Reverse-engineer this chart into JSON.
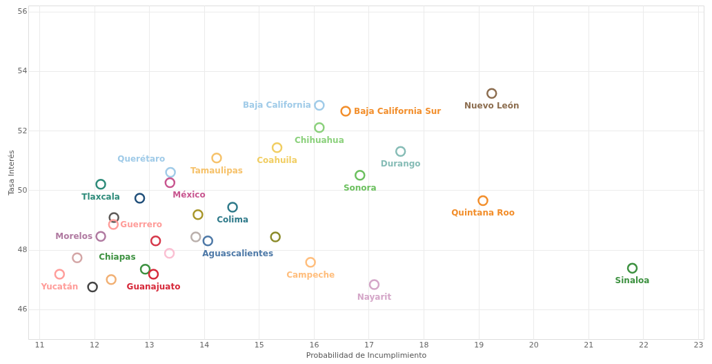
{
  "chart_data": {
    "type": "scatter",
    "xlabel": "Probabilidad de Incumplimiento",
    "ylabel": "Tasa Interés",
    "xlim": [
      10.8,
      23.1
    ],
    "ylim": [
      45,
      56.2
    ],
    "xticks": [
      11,
      12,
      13,
      14,
      15,
      16,
      17,
      18,
      19,
      20,
      21,
      22,
      23
    ],
    "yticks": [
      46,
      48,
      50,
      52,
      54,
      56
    ],
    "grid": true,
    "marker": "circle",
    "x": [
      16.1,
      16.58,
      19.24,
      16.1,
      15.33,
      14.23,
      17.58,
      16.84,
      13.39,
      13.38,
      12.12,
      12.83,
      19.08,
      14.52,
      13.89,
      12.36,
      12.35,
      12.12,
      13.85,
      14.07,
      15.3,
      13.12,
      13.37,
      15.94,
      11.69,
      12.93,
      13.08,
      11.37,
      12.31,
      11.97,
      17.1,
      21.8
    ],
    "values": [
      52.85,
      52.65,
      53.25,
      52.1,
      51.43,
      51.08,
      51.3,
      50.5,
      50.6,
      50.25,
      50.2,
      49.73,
      49.65,
      49.43,
      49.18,
      49.08,
      48.85,
      48.45,
      48.43,
      48.3,
      48.43,
      48.3,
      47.88,
      47.58,
      47.73,
      47.35,
      47.18,
      47.18,
      47.0,
      46.75,
      46.83,
      47.38
    ],
    "colors": [
      "#a0cbe8",
      "#f28e2b",
      "#8c6d4f",
      "#8cd17d",
      "#f1ce63",
      "#f6c26b",
      "#86bcb6",
      "#6cc05f",
      "#a0cbe8",
      "#c8558f",
      "#2e8b7a",
      "#1f4e79",
      "#f28e2b",
      "#2f7a8a",
      "#a8962a",
      "#5e5a58",
      "#ff9d9a",
      "#b07aa1",
      "#bab0ac",
      "#4e79a7",
      "#8b8b2a",
      "#d6384a",
      "#fabfd2",
      "#ffbe7d",
      "#d4a6a6",
      "#3d9140",
      "#d62839",
      "#ff9d9a",
      "#f1b074",
      "#444444",
      "#d4a6c8",
      "#3d9140"
    ],
    "annotations": [
      {
        "text": "Baja California",
        "x": 16.1,
        "y": 52.85
      },
      {
        "text": "Baja California Sur",
        "x": 16.58,
        "y": 52.65
      },
      {
        "text": "Nuevo León",
        "x": 19.24,
        "y": 53.25
      },
      {
        "text": "Chihuahua",
        "x": 16.1,
        "y": 52.1
      },
      {
        "text": "Coahuila",
        "x": 15.33,
        "y": 51.43
      },
      {
        "text": "Tamaulipas",
        "x": 14.23,
        "y": 51.08
      },
      {
        "text": "Durango",
        "x": 17.58,
        "y": 51.3
      },
      {
        "text": "Sonora",
        "x": 16.84,
        "y": 50.5
      },
      {
        "text": "Querétaro",
        "x": 13.39,
        "y": 50.6
      },
      {
        "text": "México",
        "x": 13.38,
        "y": 50.25
      },
      {
        "text": "Tlaxcala",
        "x": 12.12,
        "y": 50.2
      },
      {
        "text": "Quintana Roo",
        "x": 19.08,
        "y": 49.65
      },
      {
        "text": "Colima",
        "x": 14.52,
        "y": 49.43
      },
      {
        "text": "Guerrero",
        "x": 12.35,
        "y": 48.85
      },
      {
        "text": "Morelos",
        "x": 12.12,
        "y": 48.45
      },
      {
        "text": "Aguascalientes",
        "x": 14.07,
        "y": 48.3
      },
      {
        "text": "Campeche",
        "x": 15.94,
        "y": 47.58
      },
      {
        "text": "Chiapas",
        "x": 12.93,
        "y": 47.35
      },
      {
        "text": "Guanajuato",
        "x": 13.08,
        "y": 47.18
      },
      {
        "text": "Yucatán",
        "x": 11.37,
        "y": 47.18
      },
      {
        "text": "Nayarit",
        "x": 17.1,
        "y": 46.83
      },
      {
        "text": "Sinaloa",
        "x": 21.8,
        "y": 47.38
      }
    ]
  }
}
